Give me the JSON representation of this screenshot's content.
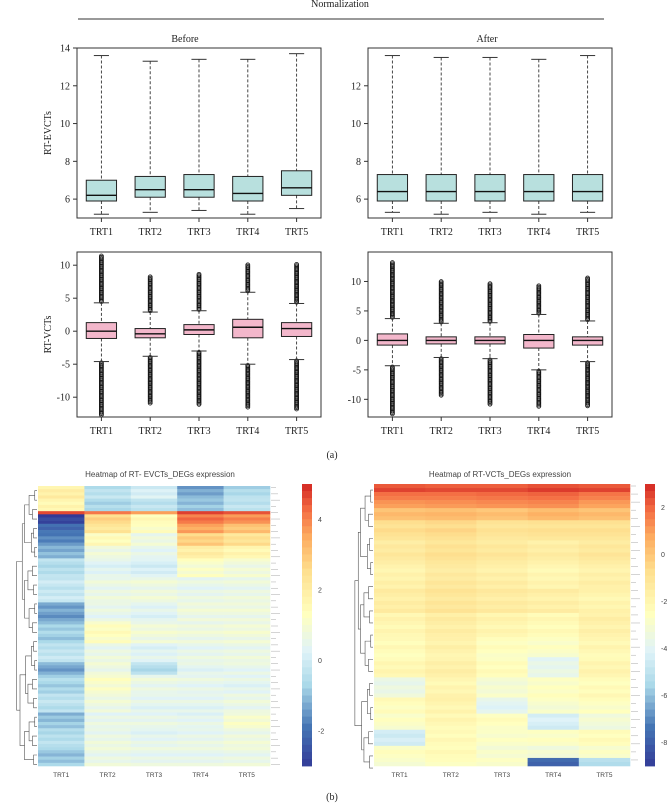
{
  "figure": {
    "header": "Normalization",
    "before_label": "Before",
    "after_label": "After",
    "panel_a_label": "(a)",
    "panel_b_label": "(b)"
  },
  "chart_data": [
    {
      "type": "box",
      "id": "evct_before",
      "ylabel": "RT-EVCTs",
      "ylim": [
        5,
        14
      ],
      "yticks": [
        6,
        8,
        10,
        12,
        14
      ],
      "categories": [
        "TRT1",
        "TRT2",
        "TRT3",
        "TRT4",
        "TRT5"
      ],
      "boxes": [
        {
          "whisker_low": 5.2,
          "q1": 5.9,
          "median": 6.2,
          "q3": 7.0,
          "whisker_high": 13.6
        },
        {
          "whisker_low": 5.3,
          "q1": 6.1,
          "median": 6.5,
          "q3": 7.2,
          "whisker_high": 13.3
        },
        {
          "whisker_low": 5.4,
          "q1": 6.1,
          "median": 6.5,
          "q3": 7.3,
          "whisker_high": 13.4
        },
        {
          "whisker_low": 5.2,
          "q1": 5.9,
          "median": 6.3,
          "q3": 7.2,
          "whisker_high": 13.4
        },
        {
          "whisker_low": 5.5,
          "q1": 6.2,
          "median": 6.6,
          "q3": 7.5,
          "whisker_high": 13.7
        }
      ],
      "outliers": []
    },
    {
      "type": "box",
      "id": "evct_after",
      "ylabel": "",
      "ylim": [
        5,
        14
      ],
      "yticks": [
        6,
        8,
        10,
        12
      ],
      "categories": [
        "TRT1",
        "TRT2",
        "TRT3",
        "TRT4",
        "TRT5"
      ],
      "boxes": [
        {
          "whisker_low": 5.3,
          "q1": 5.9,
          "median": 6.4,
          "q3": 7.3,
          "whisker_high": 13.6
        },
        {
          "whisker_low": 5.2,
          "q1": 5.9,
          "median": 6.4,
          "q3": 7.3,
          "whisker_high": 13.5
        },
        {
          "whisker_low": 5.3,
          "q1": 5.9,
          "median": 6.4,
          "q3": 7.3,
          "whisker_high": 13.5
        },
        {
          "whisker_low": 5.2,
          "q1": 5.9,
          "median": 6.4,
          "q3": 7.3,
          "whisker_high": 13.4
        },
        {
          "whisker_low": 5.3,
          "q1": 5.9,
          "median": 6.4,
          "q3": 7.3,
          "whisker_high": 13.6
        }
      ],
      "outliers": []
    },
    {
      "type": "box",
      "id": "vct_before",
      "ylabel": "RT-VCTs",
      "ylim": [
        -13,
        12
      ],
      "yticks": [
        -10,
        -5,
        0,
        5,
        10
      ],
      "categories": [
        "TRT1",
        "TRT2",
        "TRT3",
        "TRT4",
        "TRT5"
      ],
      "boxes": [
        {
          "whisker_low": -4.6,
          "q1": -1.1,
          "median": 0.0,
          "q3": 1.3,
          "whisker_high": 4.3
        },
        {
          "whisker_low": -3.8,
          "q1": -1.0,
          "median": -0.4,
          "q3": 0.4,
          "whisker_high": 2.9
        },
        {
          "whisker_low": -3.0,
          "q1": -0.5,
          "median": 0.2,
          "q3": 1.0,
          "whisker_high": 3.1
        },
        {
          "whisker_low": -5.0,
          "q1": -1.0,
          "median": 0.6,
          "q3": 1.8,
          "whisker_high": 5.9
        },
        {
          "whisker_low": -4.3,
          "q1": -0.8,
          "median": 0.4,
          "q3": 1.3,
          "whisker_high": 4.2
        }
      ],
      "outliers": [
        {
          "low": -12.8,
          "high": 11.4
        },
        {
          "low": -11.0,
          "high": 8.4
        },
        {
          "low": -11.2,
          "high": 8.8
        },
        {
          "low": -11.6,
          "high": 10.1
        },
        {
          "low": -11.9,
          "high": 10.3
        }
      ]
    },
    {
      "type": "box",
      "id": "vct_after",
      "ylabel": "",
      "ylim": [
        -13,
        15
      ],
      "yticks": [
        -10,
        -5,
        0,
        5,
        10
      ],
      "categories": [
        "TRT1",
        "TRT2",
        "TRT3",
        "TRT4",
        "TRT5"
      ],
      "boxes": [
        {
          "whisker_low": -4.3,
          "q1": -0.8,
          "median": 0.0,
          "q3": 1.1,
          "whisker_high": 3.7
        },
        {
          "whisker_low": -2.9,
          "q1": -0.6,
          "median": 0.0,
          "q3": 0.6,
          "whisker_high": 2.9
        },
        {
          "whisker_low": -3.1,
          "q1": -0.6,
          "median": 0.0,
          "q3": 0.6,
          "whisker_high": 3.0
        },
        {
          "whisker_low": -5.0,
          "q1": -1.3,
          "median": 0.0,
          "q3": 1.0,
          "whisker_high": 4.4
        },
        {
          "whisker_low": -3.6,
          "q1": -0.8,
          "median": 0.0,
          "q3": 0.6,
          "whisker_high": 3.3
        }
      ],
      "outliers": [
        {
          "low": -12.6,
          "high": 13.4
        },
        {
          "low": -9.4,
          "high": 10.0
        },
        {
          "low": -11.0,
          "high": 9.8
        },
        {
          "low": -11.3,
          "high": 9.4
        },
        {
          "low": -11.3,
          "high": 10.6
        }
      ]
    },
    {
      "type": "heatmap",
      "id": "heatmap_evct",
      "title": "Heatmap of RT- EVCTs_DEGs expression",
      "columns": [
        "TRT1",
        "TRT2",
        "TRT3",
        "TRT4",
        "TRT5"
      ],
      "colorbar_ticks": [
        -2,
        0,
        2,
        4
      ],
      "value_range": [
        -3,
        5
      ],
      "row_blocks": [
        {
          "rows": 4,
          "values": [
            2.0,
            -0.3,
            0.2,
            -1.2,
            -0.5
          ]
        },
        {
          "rows": 4,
          "values": [
            1.8,
            -0.5,
            -0.2,
            -0.8,
            -0.2
          ]
        },
        {
          "rows": 1,
          "values": [
            4.5,
            4.0,
            3.5,
            4.6,
            4.4
          ]
        },
        {
          "rows": 3,
          "values": [
            -2.8,
            2.7,
            1.5,
            4.2,
            3.9
          ]
        },
        {
          "rows": 3,
          "values": [
            -2.0,
            2.3,
            1.3,
            3.6,
            3.1
          ]
        },
        {
          "rows": 4,
          "values": [
            -1.6,
            1.5,
            0.8,
            2.9,
            2.5
          ]
        },
        {
          "rows": 4,
          "values": [
            -1.0,
            0.9,
            0.6,
            2.1,
            1.8
          ]
        },
        {
          "rows": 6,
          "values": [
            -0.4,
            0.4,
            0.2,
            1.2,
            0.9
          ]
        },
        {
          "rows": 8,
          "values": [
            -0.1,
            0.7,
            0.8,
            0.6,
            0.7
          ]
        },
        {
          "rows": 6,
          "values": [
            -1.3,
            0.6,
            0.4,
            0.8,
            0.8
          ]
        },
        {
          "rows": 7,
          "values": [
            -0.7,
            1.4,
            0.9,
            0.8,
            0.9
          ]
        },
        {
          "rows": 6,
          "values": [
            -0.2,
            0.7,
            0.4,
            0.6,
            0.7
          ]
        },
        {
          "rows": 4,
          "values": [
            -1.2,
            0.8,
            -0.4,
            0.5,
            0.6
          ]
        },
        {
          "rows": 6,
          "values": [
            -0.6,
            1.2,
            0.7,
            0.6,
            0.5
          ]
        },
        {
          "rows": 6,
          "values": [
            -0.3,
            0.8,
            0.5,
            0.5,
            0.7
          ]
        },
        {
          "rows": 5,
          "values": [
            -0.9,
            0.6,
            0.6,
            0.5,
            1.1
          ]
        },
        {
          "rows": 6,
          "values": [
            -0.4,
            0.7,
            0.5,
            0.6,
            0.8
          ]
        },
        {
          "rows": 6,
          "values": [
            -0.8,
            0.7,
            0.6,
            0.6,
            0.7
          ]
        }
      ]
    },
    {
      "type": "heatmap",
      "id": "heatmap_vct",
      "title": "Heatmap of RT-VCTs_DEGs expression",
      "columns": [
        "TRT1",
        "TRT2",
        "TRT3",
        "TRT4",
        "TRT5"
      ],
      "colorbar_ticks": [
        -8,
        -6,
        -4,
        -2,
        0,
        2
      ],
      "value_range": [
        -9,
        3
      ],
      "row_blocks": [
        {
          "rows": 2,
          "values": [
            2.6,
            2.5,
            2.5,
            2.7,
            2.6
          ]
        },
        {
          "rows": 2,
          "values": [
            2.0,
            2.0,
            2.1,
            2.2,
            1.9
          ]
        },
        {
          "rows": 2,
          "values": [
            1.1,
            1.2,
            1.3,
            1.4,
            1.0
          ]
        },
        {
          "rows": 3,
          "values": [
            0.3,
            0.4,
            0.2,
            0.5,
            0.3
          ]
        },
        {
          "rows": 5,
          "values": [
            -0.7,
            -0.5,
            -0.9,
            -0.8,
            -0.8
          ]
        },
        {
          "rows": 6,
          "values": [
            -1.2,
            -0.8,
            -1.1,
            -1.4,
            -1.1
          ]
        },
        {
          "rows": 6,
          "values": [
            -1.7,
            -1.2,
            -1.5,
            -1.9,
            -1.6
          ]
        },
        {
          "rows": 6,
          "values": [
            -1.4,
            -1.0,
            -1.3,
            -1.5,
            -1.8
          ]
        },
        {
          "rows": 6,
          "values": [
            -1.9,
            -1.4,
            -1.8,
            -2.1,
            -1.6
          ]
        },
        {
          "rows": 5,
          "values": [
            -2.2,
            -1.7,
            -2.4,
            -2.6,
            -2.0
          ]
        },
        {
          "rows": 5,
          "values": [
            -2.0,
            -1.6,
            -2.3,
            -3.6,
            -1.9
          ]
        },
        {
          "rows": 5,
          "values": [
            -3.4,
            -1.9,
            -2.9,
            -2.5,
            -2.2
          ]
        },
        {
          "rows": 4,
          "values": [
            -2.3,
            -1.8,
            -3.8,
            -2.8,
            -2.5
          ]
        },
        {
          "rows": 4,
          "values": [
            -2.6,
            -2.0,
            -2.4,
            -4.2,
            -3.1
          ]
        },
        {
          "rows": 4,
          "values": [
            -4.4,
            -2.2,
            -2.7,
            -2.6,
            -2.3
          ]
        },
        {
          "rows": 3,
          "values": [
            -2.4,
            -2.1,
            -2.8,
            -3.0,
            -2.6
          ]
        },
        {
          "rows": 2,
          "values": [
            -2.7,
            -2.3,
            -2.5,
            -7.5,
            -5.0
          ]
        }
      ]
    }
  ]
}
